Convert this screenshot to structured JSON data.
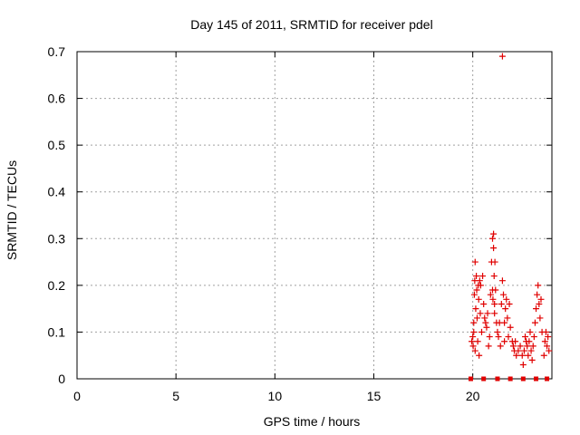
{
  "colors": {
    "marker": "#e00000",
    "grid": "#a0a0a0",
    "axis": "#000000"
  },
  "chart_data": {
    "type": "scatter",
    "title": "Day 145 of 2011, SRMTID for receiver pdel",
    "xlabel": "GPS time / hours",
    "ylabel": "SRMTID / TECUs",
    "xlim": [
      0,
      24
    ],
    "ylim": [
      0,
      0.7
    ],
    "xticks": [
      0,
      5,
      10,
      15,
      20
    ],
    "xtick_labels": [
      "0",
      "5",
      "10",
      "15",
      "20"
    ],
    "yticks": [
      0,
      0.1,
      0.2,
      0.3,
      0.4,
      0.5,
      0.6,
      0.7
    ],
    "ytick_labels": [
      "0",
      "0.1",
      "0.2",
      "0.3",
      "0.4",
      "0.5",
      "0.6",
      "0.7"
    ],
    "grid": true,
    "marker": "+",
    "series": [
      {
        "points": [
          [
            19.95,
            0.08
          ],
          [
            20.0,
            0.09
          ],
          [
            20.02,
            0.07
          ],
          [
            20.05,
            0.1
          ],
          [
            20.05,
            0.12
          ],
          [
            20.08,
            0.18
          ],
          [
            20.1,
            0.21
          ],
          [
            20.12,
            0.25
          ],
          [
            20.12,
            0.06
          ],
          [
            20.15,
            0.15
          ],
          [
            20.18,
            0.22
          ],
          [
            20.2,
            0.19
          ],
          [
            20.22,
            0.13
          ],
          [
            20.25,
            0.08
          ],
          [
            20.28,
            0.2
          ],
          [
            20.3,
            0.17
          ],
          [
            20.32,
            0.05
          ],
          [
            20.35,
            0.21
          ],
          [
            20.38,
            0.14
          ],
          [
            20.4,
            0.2
          ],
          [
            20.45,
            0.1
          ],
          [
            20.5,
            0.22
          ],
          [
            20.55,
            0.16
          ],
          [
            20.6,
            0.13
          ],
          [
            20.65,
            0.12
          ],
          [
            20.7,
            0.11
          ],
          [
            20.75,
            0.14
          ],
          [
            20.8,
            0.07
          ],
          [
            20.85,
            0.09
          ],
          [
            20.9,
            0.18
          ],
          [
            20.95,
            0.25
          ],
          [
            21.0,
            0.19
          ],
          [
            21.0,
            0.3
          ],
          [
            21.02,
            0.17
          ],
          [
            21.05,
            0.31
          ],
          [
            21.05,
            0.28
          ],
          [
            21.08,
            0.22
          ],
          [
            21.1,
            0.16
          ],
          [
            21.1,
            0.14
          ],
          [
            21.12,
            0.25
          ],
          [
            21.15,
            0.19
          ],
          [
            21.2,
            0.12
          ],
          [
            21.25,
            0.1
          ],
          [
            21.3,
            0.09
          ],
          [
            21.35,
            0.12
          ],
          [
            21.4,
            0.07
          ],
          [
            21.45,
            0.16
          ],
          [
            21.5,
            0.21
          ],
          [
            21.5,
            0.69
          ],
          [
            21.55,
            0.18
          ],
          [
            21.6,
            0.12
          ],
          [
            21.6,
            0.08
          ],
          [
            21.65,
            0.15
          ],
          [
            21.7,
            0.17
          ],
          [
            21.75,
            0.13
          ],
          [
            21.8,
            0.09
          ],
          [
            21.85,
            0.16
          ],
          [
            21.9,
            0.11
          ],
          [
            22.0,
            0.08
          ],
          [
            22.05,
            0.07
          ],
          [
            22.1,
            0.06
          ],
          [
            22.15,
            0.08
          ],
          [
            22.2,
            0.05
          ],
          [
            22.3,
            0.06
          ],
          [
            22.4,
            0.07
          ],
          [
            22.5,
            0.05
          ],
          [
            22.55,
            0.03
          ],
          [
            22.6,
            0.06
          ],
          [
            22.65,
            0.09
          ],
          [
            22.7,
            0.08
          ],
          [
            22.75,
            0.07
          ],
          [
            22.8,
            0.05
          ],
          [
            22.85,
            0.08
          ],
          [
            22.9,
            0.1
          ],
          [
            22.95,
            0.06
          ],
          [
            23.0,
            0.04
          ],
          [
            23.05,
            0.07
          ],
          [
            23.1,
            0.09
          ],
          [
            23.15,
            0.12
          ],
          [
            23.2,
            0.15
          ],
          [
            23.25,
            0.18
          ],
          [
            23.3,
            0.2
          ],
          [
            23.35,
            0.16
          ],
          [
            23.4,
            0.13
          ],
          [
            23.45,
            0.17
          ],
          [
            23.5,
            0.1
          ],
          [
            23.6,
            0.05
          ],
          [
            23.65,
            0.08
          ],
          [
            23.7,
            0.1
          ],
          [
            23.75,
            0.07
          ],
          [
            23.8,
            0.09
          ],
          [
            23.85,
            0.06
          ]
        ]
      }
    ],
    "zero_markers_x": [
      19.9,
      20.55,
      21.25,
      21.9,
      22.55,
      23.2,
      23.75
    ]
  }
}
